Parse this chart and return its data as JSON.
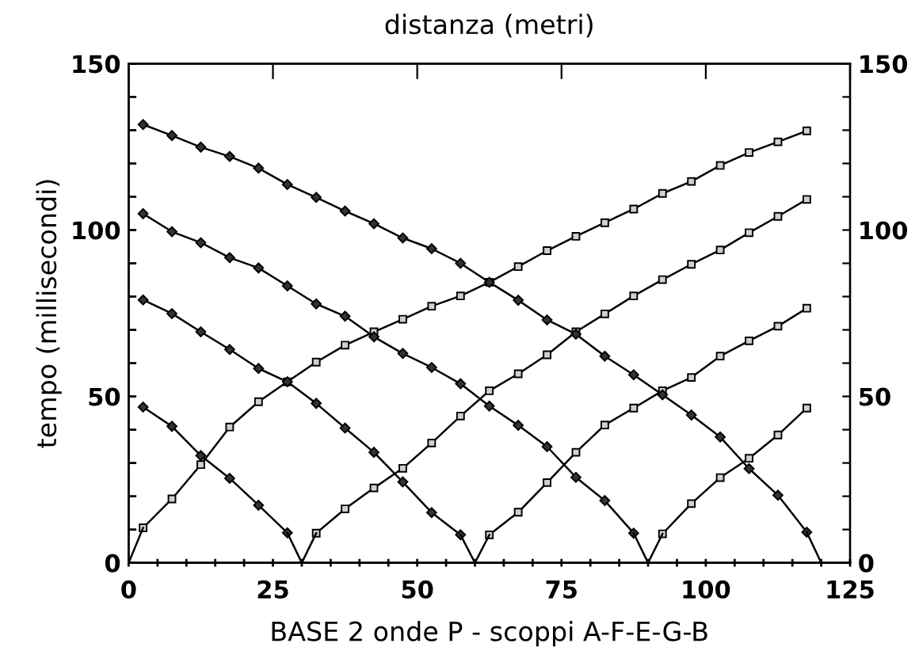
{
  "chart_data": {
    "type": "line",
    "x2label": "distanza (metri)",
    "xlabel": "BASE 2 onde P - scoppi A-F-E-G-B",
    "ylabel": "tempo (millisecondi)",
    "xlim": [
      0,
      125
    ],
    "xticks": [
      0,
      {
        "value": 5,
        "label": null
      },
      {
        "value": 10,
        "label": null
      },
      {
        "value": 15,
        "label": null
      },
      {
        "value": 20,
        "label": null
      },
      25,
      {
        "value": 30,
        "label": null
      },
      {
        "value": 35,
        "label": null
      },
      {
        "value": 40,
        "label": null
      },
      {
        "value": 45,
        "label": null
      },
      50,
      {
        "value": 55,
        "label": null
      },
      {
        "value": 60,
        "label": null
      },
      {
        "value": 65,
        "label": null
      },
      {
        "value": 70,
        "label": null
      },
      75,
      {
        "value": 80,
        "label": null
      },
      {
        "value": 85,
        "label": null
      },
      {
        "value": 90,
        "label": null
      },
      {
        "value": 95,
        "label": null
      },
      100,
      {
        "value": 105,
        "label": null
      },
      {
        "value": 110,
        "label": null
      },
      {
        "value": 115,
        "label": null
      },
      {
        "value": 120,
        "label": null
      },
      125
    ],
    "ylim": [
      0,
      150
    ],
    "yticks": [
      0,
      {
        "value": 10,
        "label": null
      },
      {
        "value": 20,
        "label": null
      },
      {
        "value": 30,
        "label": null
      },
      {
        "value": 40,
        "label": null
      },
      50,
      {
        "value": 60,
        "label": null
      },
      {
        "value": 70,
        "label": null
      },
      {
        "value": 80,
        "label": null
      },
      {
        "value": 90,
        "label": null
      },
      100,
      {
        "value": 110,
        "label": null
      },
      {
        "value": 120,
        "label": null
      },
      {
        "value": 130,
        "label": null
      },
      {
        "value": 140,
        "label": null
      },
      150
    ],
    "y2lim": [
      0,
      150
    ],
    "y2ticks": [
      0,
      {
        "value": 10,
        "label": null
      },
      {
        "value": 20,
        "label": null
      },
      {
        "value": 30,
        "label": null
      },
      {
        "value": 40,
        "label": null
      },
      50,
      {
        "value": 60,
        "label": null
      },
      {
        "value": 70,
        "label": null
      },
      {
        "value": 80,
        "label": null
      },
      {
        "value": 90,
        "label": null
      },
      100,
      {
        "value": 110,
        "label": null
      },
      {
        "value": 120,
        "label": null
      },
      {
        "value": 130,
        "label": null
      },
      {
        "value": 140,
        "label": null
      },
      150
    ],
    "grid": false,
    "legend": false,
    "line_style": "solid",
    "series": [
      {
        "color": "#000000",
        "marker": "square",
        "x": [
          2.5,
          7.5,
          12.5,
          17.5,
          22.5,
          27.5,
          32.5,
          37.5,
          42.5,
          47.5,
          52.5,
          57.5,
          62.5,
          67.5,
          72.5,
          77.5,
          82.5,
          87.5,
          92.5,
          97.5,
          102.5,
          107.5,
          112.5,
          117.5
        ],
        "values": [
          10.5,
          19.2,
          29.5,
          40.8,
          48.4,
          54.4,
          60.3,
          65.4,
          69.4,
          73.2,
          77.1,
          80.2,
          84.3,
          89.0,
          93.8,
          98.1,
          102.2,
          106.3,
          111.0,
          114.6,
          119.4,
          123.3,
          126.5,
          129.8
        ]
      },
      {
        "color": "#000000",
        "marker": "diamond",
        "x": [
          2.5,
          7.5,
          12.5,
          17.5,
          22.5,
          27.5
        ],
        "values": [
          46.8,
          41.0,
          32.2,
          25.4,
          17.3,
          9.0
        ]
      },
      {
        "color": "#000000",
        "marker": "square",
        "x": [
          32.5,
          37.5,
          42.5,
          47.5,
          52.5,
          57.5,
          62.5,
          67.5,
          72.5,
          77.5,
          82.5,
          87.5,
          92.5,
          97.5,
          102.5,
          107.5,
          112.5,
          117.5
        ],
        "values": [
          8.9,
          16.2,
          22.5,
          28.4,
          36.0,
          44.1,
          51.7,
          56.8,
          62.5,
          69.4,
          74.8,
          80.2,
          85.1,
          89.7,
          94.0,
          99.2,
          104.1,
          109.2
        ]
      },
      {
        "color": "#000000",
        "marker": "diamond",
        "x": [
          2.5,
          7.5,
          12.5,
          17.5,
          22.5,
          27.5,
          32.5,
          37.5,
          42.5,
          47.5,
          52.5,
          57.5
        ],
        "values": [
          79.0,
          74.9,
          69.4,
          64.1,
          58.4,
          54.4,
          47.9,
          40.5,
          33.2,
          24.3,
          15.1,
          8.4
        ]
      },
      {
        "color": "#000000",
        "marker": "square",
        "x": [
          62.5,
          67.5,
          72.5,
          77.5,
          82.5,
          87.5,
          92.5,
          97.5,
          102.5,
          107.5,
          112.5,
          117.5
        ],
        "values": [
          8.4,
          15.2,
          24.1,
          33.2,
          41.4,
          46.5,
          51.7,
          55.7,
          62.1,
          66.7,
          71.1,
          76.5
        ]
      },
      {
        "color": "#000000",
        "marker": "diamond",
        "x": [
          2.5,
          7.5,
          12.5,
          17.5,
          22.5,
          27.5,
          32.5,
          37.5,
          42.5,
          47.5,
          52.5,
          57.5,
          62.5,
          67.5,
          72.5,
          77.5,
          82.5,
          87.5
        ],
        "values": [
          104.9,
          99.5,
          96.2,
          91.7,
          88.6,
          83.2,
          77.8,
          74.1,
          67.9,
          62.9,
          58.7,
          53.8,
          47.1,
          41.3,
          34.9,
          25.7,
          18.7,
          8.9
        ]
      },
      {
        "color": "#000000",
        "marker": "square",
        "x": [
          92.5,
          97.5,
          102.5,
          107.5,
          112.5,
          117.5
        ],
        "values": [
          8.7,
          17.8,
          25.6,
          31.4,
          38.4,
          46.5
        ]
      },
      {
        "color": "#000000",
        "marker": "diamond",
        "x": [
          2.5,
          7.5,
          12.5,
          17.5,
          22.5,
          27.5,
          32.5,
          37.5,
          42.5,
          47.5,
          52.5,
          57.5,
          62.5,
          67.5,
          72.5,
          77.5,
          82.5,
          87.5,
          92.5,
          97.5,
          102.5,
          107.5,
          112.5,
          117.5
        ],
        "values": [
          131.7,
          128.4,
          124.9,
          122.1,
          118.6,
          113.7,
          109.8,
          105.7,
          101.9,
          97.6,
          94.4,
          90.0,
          84.3,
          78.9,
          73.0,
          68.7,
          62.1,
          56.5,
          50.5,
          44.4,
          37.8,
          28.3,
          20.3,
          9.2
        ]
      },
      {
        "color": "#000000",
        "marker": "none",
        "x": [
          0,
          2.5
        ],
        "values": [
          0,
          10.5
        ]
      },
      {
        "color": "#000000",
        "marker": "none",
        "x": [
          27.5,
          30,
          32.5
        ],
        "values": [
          9.0,
          0,
          8.9
        ]
      },
      {
        "color": "#000000",
        "marker": "none",
        "x": [
          57.5,
          60,
          62.5
        ],
        "values": [
          8.4,
          0,
          8.4
        ]
      },
      {
        "color": "#000000",
        "marker": "none",
        "x": [
          87.5,
          90,
          92.5
        ],
        "values": [
          8.9,
          0,
          8.7
        ]
      },
      {
        "color": "#000000",
        "marker": "none",
        "x": [
          117.5,
          120
        ],
        "values": [
          9.2,
          0
        ]
      }
    ]
  }
}
